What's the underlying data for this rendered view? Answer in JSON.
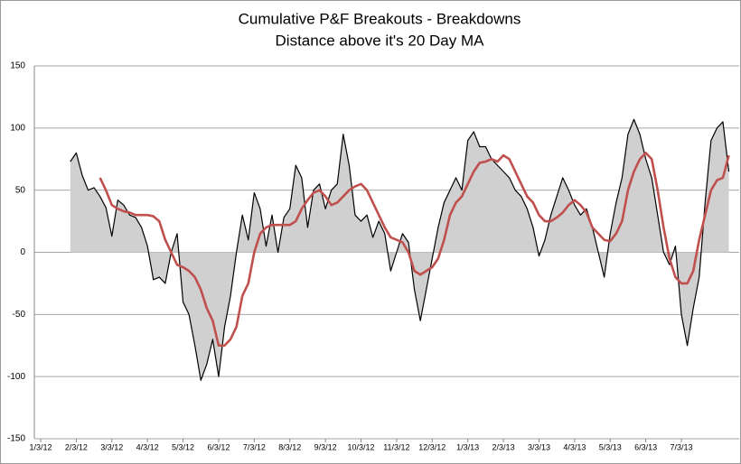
{
  "chart_data": {
    "type": "line",
    "title": "Cumulative P&F Breakouts - Breakdowns",
    "subtitle": "Distance above it's 20 Day MA",
    "categories": [
      "1/3/12",
      null,
      null,
      null,
      null,
      null,
      "2/3/12",
      null,
      null,
      null,
      null,
      null,
      "3/3/12",
      null,
      null,
      null,
      null,
      null,
      "4/3/12",
      null,
      null,
      null,
      null,
      null,
      "5/3/12",
      null,
      null,
      null,
      null,
      null,
      "6/3/12",
      null,
      null,
      null,
      null,
      null,
      "7/3/12",
      null,
      null,
      null,
      null,
      null,
      "8/3/12",
      null,
      null,
      null,
      null,
      null,
      "9/3/12",
      null,
      null,
      null,
      null,
      null,
      "10/3/12",
      null,
      null,
      null,
      null,
      null,
      "11/3/12",
      null,
      null,
      null,
      null,
      null,
      "12/3/12",
      null,
      null,
      null,
      null,
      null,
      "1/3/13",
      null,
      null,
      null,
      null,
      null,
      "2/3/13",
      null,
      null,
      null,
      null,
      null,
      "3/3/13",
      null,
      null,
      null,
      null,
      null,
      "4/3/13",
      null,
      null,
      null,
      null,
      null,
      "5/3/13",
      null,
      null,
      null,
      null,
      null,
      "6/3/13",
      null,
      null,
      null,
      null,
      null,
      "7/3/13",
      null,
      null,
      null,
      null,
      null,
      null,
      null,
      null
    ],
    "series": [
      {
        "color": "#000000",
        "fill": "#d0d0d0",
        "values": [
          null,
          null,
          null,
          null,
          null,
          73,
          80,
          62,
          50,
          52,
          45,
          36,
          13,
          42,
          38,
          30,
          28,
          20,
          5,
          -22,
          -20,
          -25,
          0,
          15,
          -40,
          -50,
          -75,
          -103,
          -90,
          -70,
          -100,
          -60,
          -35,
          0,
          30,
          10,
          48,
          35,
          5,
          30,
          0,
          28,
          35,
          70,
          60,
          20,
          50,
          55,
          35,
          50,
          55,
          95,
          70,
          30,
          25,
          30,
          12,
          25,
          15,
          -15,
          0,
          15,
          8,
          -30,
          -55,
          -30,
          -5,
          20,
          40,
          50,
          60,
          50,
          90,
          97,
          85,
          85,
          75,
          70,
          65,
          60,
          50,
          45,
          35,
          20,
          -3,
          10,
          30,
          45,
          60,
          50,
          38,
          30,
          35,
          20,
          0,
          -20,
          15,
          40,
          60,
          95,
          107,
          95,
          75,
          60,
          30,
          0,
          -10,
          5,
          -50,
          -75,
          -45,
          -20,
          40,
          90,
          100,
          105,
          65
        ]
      },
      {
        "color": "#c0504d",
        "values": [
          null,
          null,
          null,
          null,
          null,
          null,
          null,
          null,
          null,
          null,
          60,
          50,
          38,
          35,
          33,
          32,
          30,
          30,
          30,
          29,
          25,
          10,
          0,
          -10,
          -12,
          -15,
          -20,
          -30,
          -45,
          -55,
          -75,
          -75,
          -70,
          -60,
          -35,
          -25,
          0,
          15,
          20,
          22,
          22,
          22,
          22,
          25,
          35,
          42,
          48,
          50,
          45,
          38,
          40,
          45,
          50,
          53,
          55,
          50,
          40,
          30,
          20,
          12,
          10,
          8,
          0,
          -15,
          -18,
          -15,
          -12,
          -5,
          10,
          30,
          40,
          45,
          55,
          65,
          72,
          73,
          75,
          73,
          78,
          75,
          65,
          55,
          45,
          40,
          30,
          25,
          25,
          28,
          32,
          38,
          42,
          38,
          32,
          20,
          15,
          10,
          9,
          15,
          25,
          50,
          65,
          75,
          80,
          75,
          50,
          20,
          -5,
          -20,
          -25,
          -25,
          -15,
          10,
          30,
          50,
          58,
          60,
          78
        ]
      }
    ],
    "ylim": [
      -150,
      150
    ],
    "yticks": [
      -150,
      -100,
      -50,
      0,
      50,
      100,
      150
    ],
    "grid": true
  }
}
